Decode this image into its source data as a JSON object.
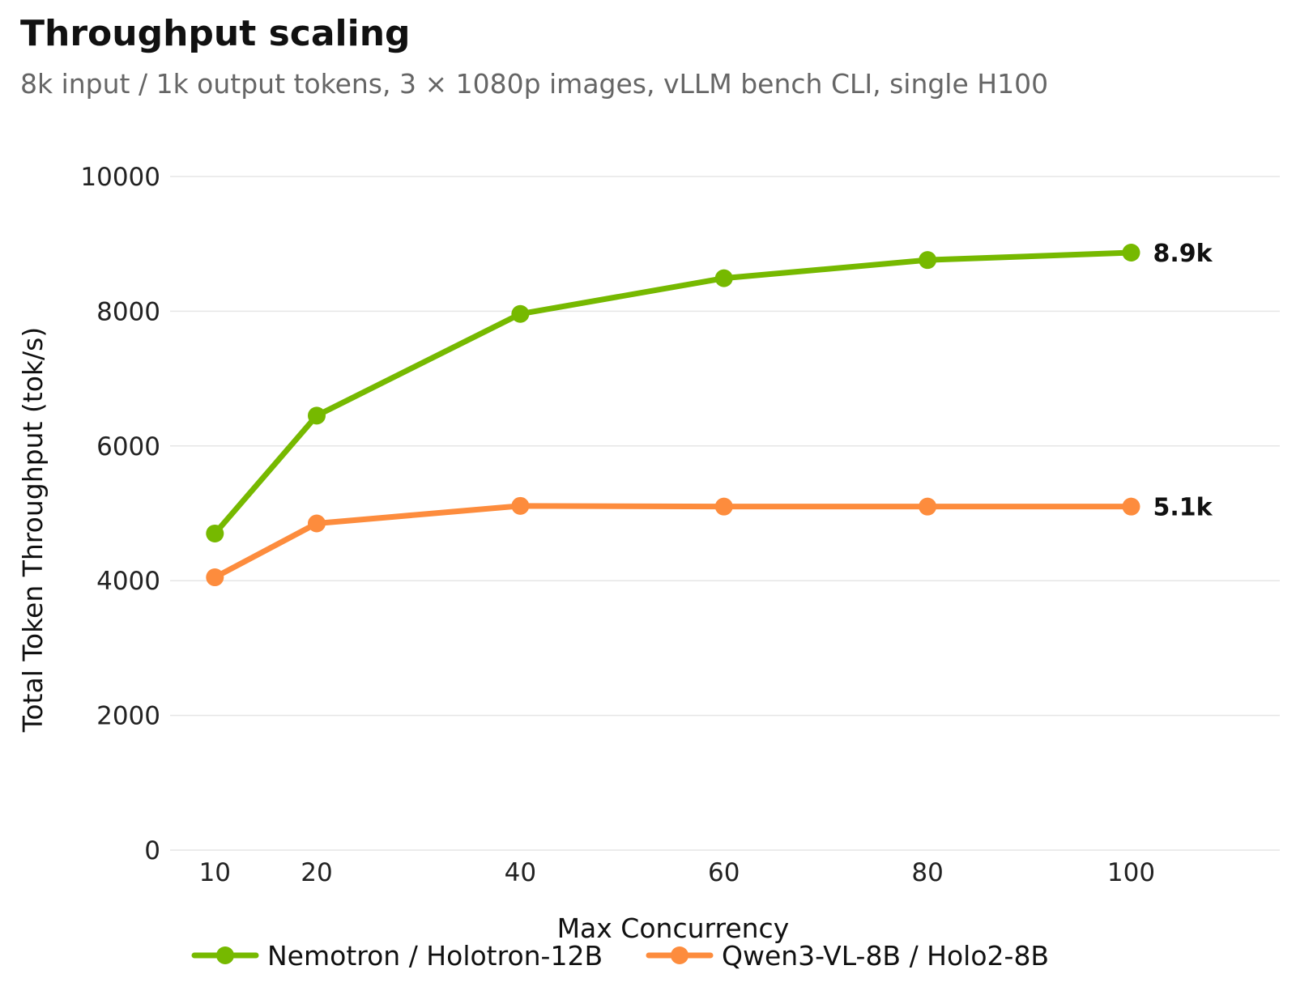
{
  "chart_data": {
    "type": "line",
    "title": "Throughput scaling",
    "subtitle": "8k input / 1k output tokens, 3 × 1080p images, vLLM bench CLI, single H100",
    "xlabel": "Max Concurrency",
    "ylabel": "Total Token Throughput (tok/s)",
    "x": [
      10,
      20,
      40,
      60,
      80,
      100
    ],
    "x_ticks": [
      "10",
      "20",
      "40",
      "60",
      "80",
      "100"
    ],
    "y_ticks": [
      "0",
      "2000",
      "4000",
      "6000",
      "8000",
      "10000"
    ],
    "ylim": [
      0,
      10000
    ],
    "xlim": [
      5.6,
      114.6
    ],
    "grid": true,
    "legend_position": "bottom",
    "series": [
      {
        "name": "Nemotron / Holotron-12B",
        "color": "#76b900",
        "values": [
          4700,
          6450,
          7960,
          8490,
          8760,
          8870
        ],
        "end_label": "8.9k"
      },
      {
        "name": "Qwen3-VL-8B / Holo2-8B",
        "color": "#fd8c3d",
        "values": [
          4050,
          4850,
          5110,
          5100,
          5100,
          5100
        ],
        "end_label": "5.1k"
      }
    ]
  }
}
